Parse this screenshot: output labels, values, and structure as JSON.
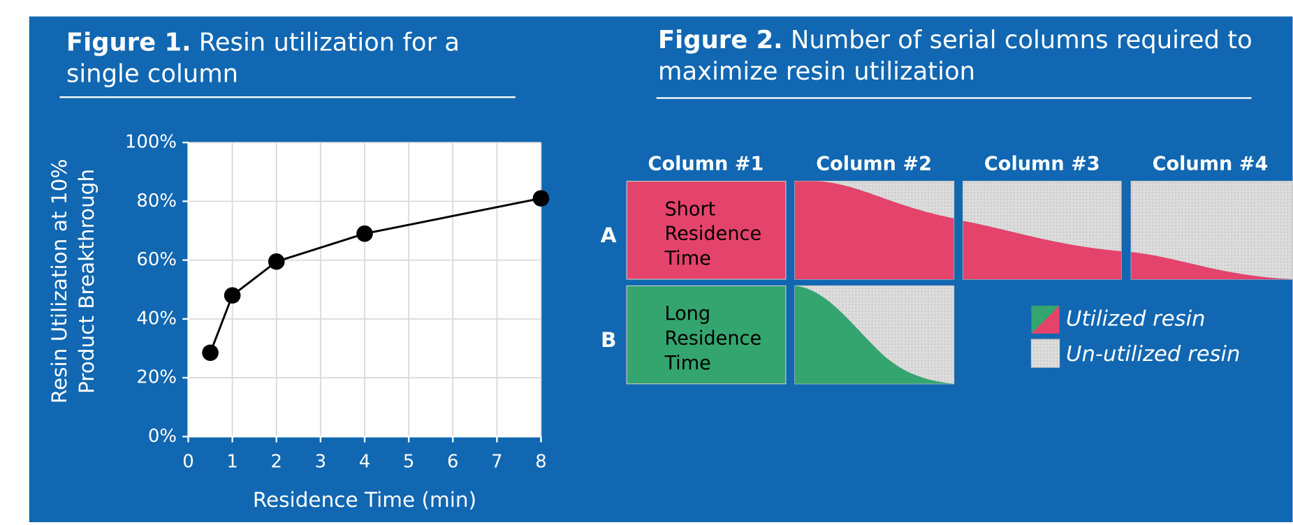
{
  "chart_data": {
    "type": "line",
    "title_prefix": "Figure 1.",
    "title": [
      "Resin utilization for a",
      "single column"
    ],
    "ylabel": [
      "Resin Utilization at 10%",
      "Product Breakthrough"
    ],
    "xlabel": "Residence Time (min)",
    "x": [
      0.5,
      1,
      2,
      4,
      8
    ],
    "values": [
      28.5,
      48,
      59.5,
      69,
      81
    ],
    "color": "#000000",
    "xlim": [
      0,
      8
    ],
    "xticks": [
      0,
      1,
      2,
      3,
      4,
      5,
      6,
      7,
      8
    ],
    "ylim": [
      0,
      100
    ],
    "yticks": [
      {
        "value": 0,
        "label": "0%"
      },
      {
        "value": 20,
        "label": "20%"
      },
      {
        "value": 40,
        "label": "40%"
      },
      {
        "value": 60,
        "label": "60%"
      },
      {
        "value": 80,
        "label": "80%"
      },
      {
        "value": 100,
        "label": "100%"
      }
    ],
    "grid": true
  },
  "figure2": {
    "title_prefix": "Figure 2.",
    "title": [
      "Number of serial columns required to",
      "maximize resin utilization"
    ],
    "columns": [
      "Column #1",
      "Column #2",
      "Column #3",
      "Column #4"
    ],
    "rows": [
      {
        "label": "A",
        "text": [
          "Short",
          "Residence",
          "Time"
        ]
      },
      {
        "label": "B",
        "text": [
          "Long",
          "Residence",
          "Time"
        ]
      }
    ],
    "legend": [
      "Utilized resin",
      "Un-utilized resin"
    ]
  }
}
